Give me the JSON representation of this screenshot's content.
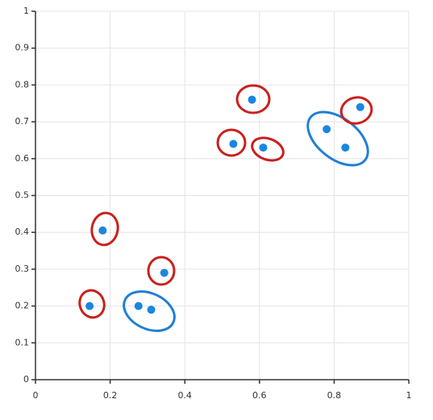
{
  "chart_data": {
    "type": "scatter",
    "x": [
      0.145,
      0.18,
      0.276,
      0.31,
      0.345,
      0.53,
      0.58,
      0.61,
      0.78,
      0.83,
      0.87
    ],
    "values": [
      0.2,
      0.405,
      0.2,
      0.19,
      0.29,
      0.64,
      0.76,
      0.63,
      0.68,
      0.63,
      0.74
    ],
    "color": "#1a86e0",
    "xlim": [
      0,
      1
    ],
    "ylim": [
      0,
      1
    ],
    "xticks": [
      0,
      0.2,
      0.4,
      0.6,
      0.8,
      1
    ],
    "yticks": [
      0,
      0.1,
      0.2,
      0.3,
      0.4,
      0.5,
      0.6,
      0.7,
      0.8,
      0.9,
      1
    ],
    "grid": true
  }
}
